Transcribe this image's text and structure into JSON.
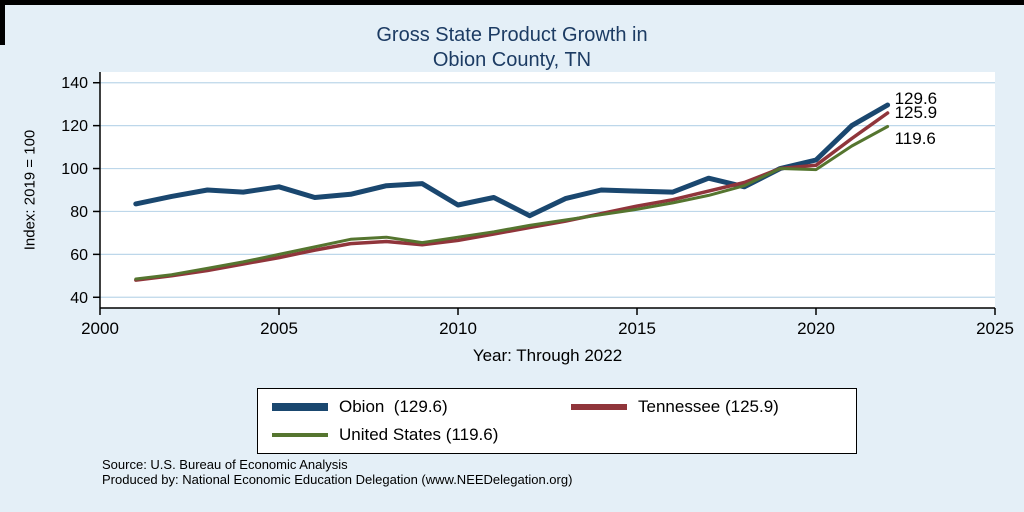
{
  "figure": {
    "title_line1": "Gross State Product Growth in",
    "title_line2": "Obion County, TN",
    "source_line1": "Source: U.S. Bureau of Economic Analysis",
    "source_line2": "Produced by: National Economic Education Delegation (www.NEEDelegation.org)",
    "background_color": "#e4eff7",
    "title_color": "#1c3b63"
  },
  "chart_data": {
    "type": "line",
    "title": "Gross State Product Growth in Obion County, TN",
    "xlabel": "Year: Through 2022",
    "ylabel": "Index: 2019 = 100",
    "xlim": [
      2000,
      2025
    ],
    "ylim": [
      40,
      140
    ],
    "xticks": [
      2000,
      2005,
      2010,
      2015,
      2020,
      2025
    ],
    "yticks": [
      40,
      60,
      80,
      100,
      120,
      140
    ],
    "grid": "horizontal",
    "gridline_color": "#bdd7ea",
    "legend_position": "bottom-center",
    "x": [
      2001,
      2002,
      2003,
      2004,
      2005,
      2006,
      2007,
      2008,
      2009,
      2010,
      2011,
      2012,
      2013,
      2014,
      2015,
      2016,
      2017,
      2018,
      2019,
      2020,
      2021,
      2022
    ],
    "series": [
      {
        "name": "Obion",
        "legend_label": "Obion  (129.6)",
        "end_label": "129.6",
        "color": "#1a476f",
        "values": [
          83.5,
          87,
          90,
          89,
          91.5,
          86.5,
          88,
          92,
          93,
          83,
          86.5,
          78,
          86,
          90,
          89.5,
          89,
          95.5,
          91.5,
          100,
          104,
          120,
          129.6
        ]
      },
      {
        "name": "Tennessee",
        "legend_label": "Tennessee (125.9)",
        "end_label": "125.9",
        "color": "#90353b",
        "values": [
          48,
          50,
          52.5,
          55.5,
          58.5,
          62,
          65,
          66,
          64.5,
          66.5,
          69.5,
          72.5,
          75.5,
          79,
          82.5,
          85.5,
          89.5,
          93.5,
          100,
          101.5,
          114,
          125.9
        ]
      },
      {
        "name": "United States",
        "legend_label": "United States (119.6)",
        "end_label": "119.6",
        "color": "#55752f",
        "values": [
          48.5,
          50.5,
          53.5,
          56.5,
          60,
          63.5,
          67,
          68,
          65.5,
          68,
          70.5,
          73.5,
          76,
          78.5,
          81,
          84,
          87.5,
          92,
          100,
          99.5,
          110.5,
          119.6
        ]
      }
    ]
  }
}
